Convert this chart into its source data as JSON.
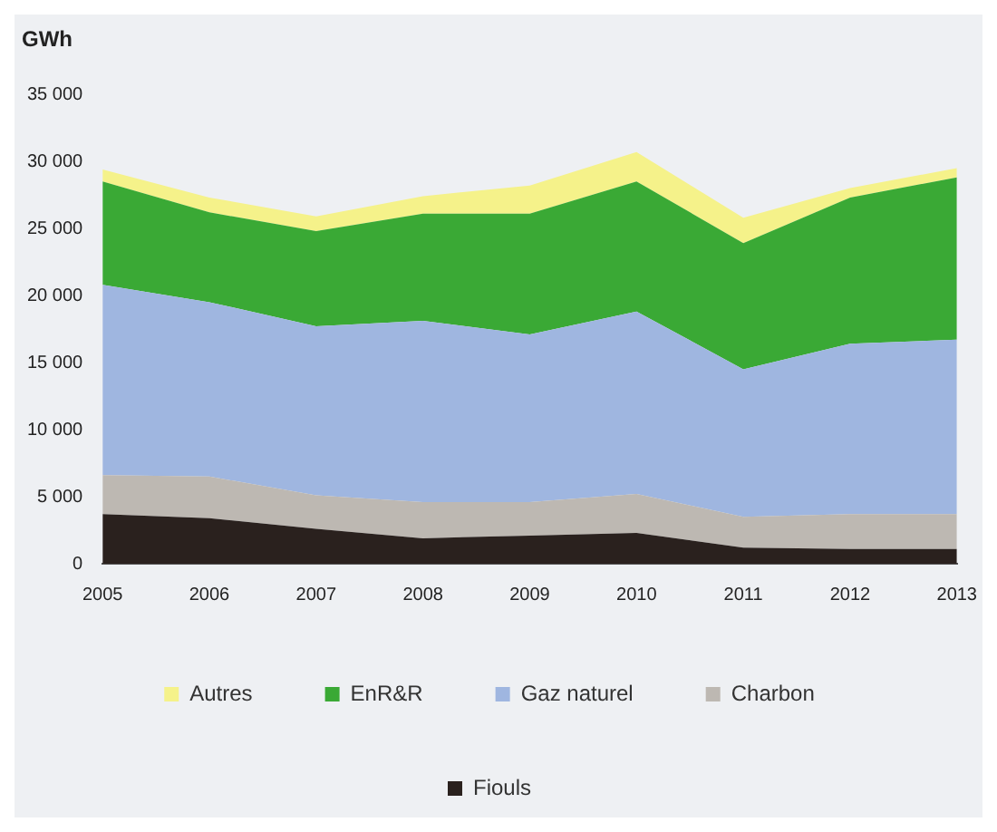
{
  "chart_data": {
    "type": "area",
    "ylabel": "GWh",
    "stacked": true,
    "legend": "bottom",
    "grid": false,
    "marker": "none",
    "categories": [
      "2005",
      "2006",
      "2007",
      "2008",
      "2009",
      "2010",
      "2011",
      "2012",
      "2013"
    ],
    "ylim": [
      0,
      35000
    ],
    "yticks": [
      {
        "value": 0,
        "label": "0"
      },
      {
        "value": 5000,
        "label": "5 000"
      },
      {
        "value": 10000,
        "label": "10 000"
      },
      {
        "value": 15000,
        "label": "15 000"
      },
      {
        "value": 20000,
        "label": "20 000"
      },
      {
        "value": 25000,
        "label": "25 000"
      },
      {
        "value": 30000,
        "label": "30 000"
      },
      {
        "value": 35000,
        "label": "35 000"
      }
    ],
    "series": [
      {
        "name": "Fiouls",
        "color": "#2a211e",
        "values": [
          3700,
          3400,
          2600,
          1900,
          2100,
          2300,
          1200,
          1100,
          1100
        ]
      },
      {
        "name": "Charbon",
        "color": "#bdb8b2",
        "values": [
          2900,
          3100,
          2500,
          2700,
          2500,
          2900,
          2300,
          2600,
          2600
        ]
      },
      {
        "name": "Gaz naturel",
        "color": "#9fb6e0",
        "values": [
          14200,
          13000,
          12600,
          13500,
          12500,
          13600,
          11000,
          12700,
          13000
        ]
      },
      {
        "name": "EnR&R",
        "color": "#3aa935",
        "values": [
          7700,
          6700,
          7100,
          8000,
          9000,
          9700,
          9400,
          10900,
          12100
        ]
      },
      {
        "name": "Autres",
        "color": "#f5f28a",
        "values": [
          900,
          1100,
          1100,
          1300,
          2100,
          2200,
          1900,
          700,
          700
        ]
      }
    ]
  }
}
